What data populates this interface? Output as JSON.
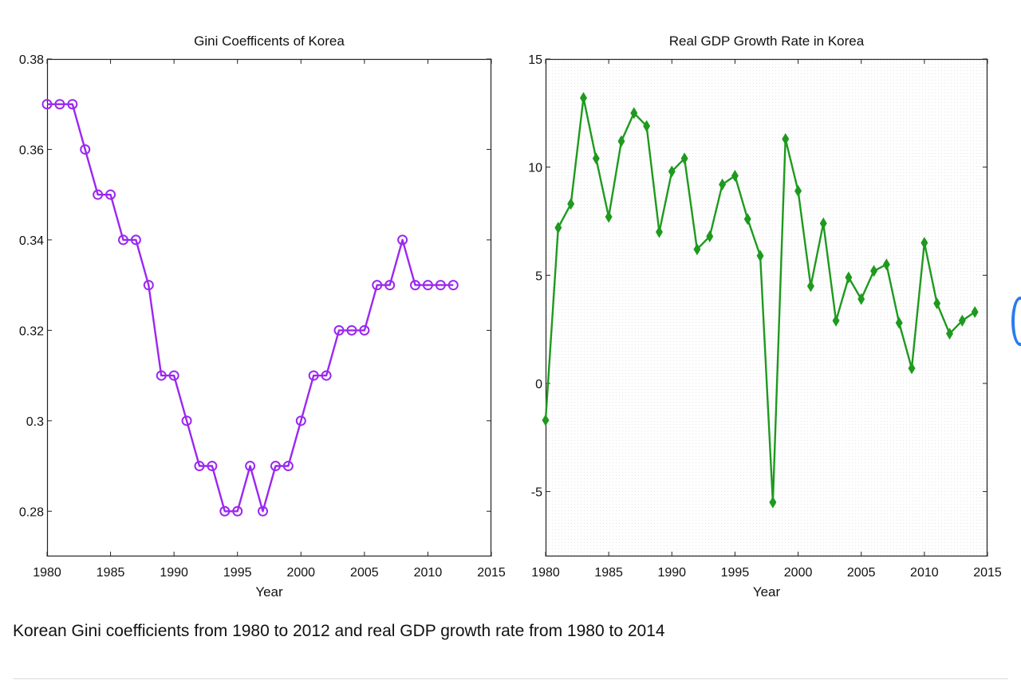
{
  "chart_data": [
    {
      "type": "line",
      "title": "Gini Coefficents of Korea",
      "xlabel": "Year",
      "ylabel": "",
      "xlim": [
        1980,
        2015
      ],
      "ylim": [
        0.27,
        0.38
      ],
      "xticks": [
        1980,
        1985,
        1990,
        1995,
        2000,
        2005,
        2010,
        2015
      ],
      "xtick_labels": [
        "1980",
        "1985",
        "1990",
        "1995",
        "2000",
        "2005",
        "2010",
        "2015"
      ],
      "yticks": [
        0.28,
        0.3,
        0.32,
        0.34,
        0.36,
        0.38
      ],
      "ytick_labels": [
        "0.28",
        "0.3",
        "0.32",
        "0.34",
        "0.36",
        "0.38"
      ],
      "marker": "circle",
      "background": "plain",
      "series": [
        {
          "name": "Gini coefficient",
          "color": "#9b27f0",
          "x": [
            1980,
            1981,
            1982,
            1983,
            1984,
            1985,
            1986,
            1987,
            1988,
            1989,
            1990,
            1991,
            1992,
            1993,
            1994,
            1995,
            1996,
            1997,
            1998,
            1999,
            2000,
            2001,
            2002,
            2003,
            2004,
            2005,
            2006,
            2007,
            2008,
            2009,
            2010,
            2011,
            2012
          ],
          "values": [
            0.37,
            0.37,
            0.37,
            0.36,
            0.35,
            0.35,
            0.34,
            0.34,
            0.33,
            0.31,
            0.31,
            0.3,
            0.29,
            0.29,
            0.28,
            0.28,
            0.29,
            0.28,
            0.29,
            0.29,
            0.3,
            0.31,
            0.31,
            0.32,
            0.32,
            0.32,
            0.33,
            0.33,
            0.34,
            0.33,
            0.33,
            0.33,
            0.33
          ]
        }
      ]
    },
    {
      "type": "line",
      "title": "Real GDP Growth Rate in Korea",
      "xlabel": "Year",
      "ylabel": "",
      "xlim": [
        1980,
        2015
      ],
      "ylim": [
        -8,
        15
      ],
      "xticks": [
        1980,
        1985,
        1990,
        1995,
        2000,
        2005,
        2010,
        2015
      ],
      "xtick_labels": [
        "1980",
        "1985",
        "1990",
        "1995",
        "2000",
        "2005",
        "2010",
        "2015"
      ],
      "yticks": [
        -5,
        0,
        5,
        10,
        15
      ],
      "ytick_labels": [
        "-5",
        "0",
        "5",
        "10",
        "15"
      ],
      "marker": "diamond",
      "background": "dotted",
      "series": [
        {
          "name": "Real GDP growth rate",
          "color": "#1e9a1e",
          "x": [
            1980,
            1981,
            1982,
            1983,
            1984,
            1985,
            1986,
            1987,
            1988,
            1989,
            1990,
            1991,
            1992,
            1993,
            1994,
            1995,
            1996,
            1997,
            1998,
            1999,
            2000,
            2001,
            2002,
            2003,
            2004,
            2005,
            2006,
            2007,
            2008,
            2009,
            2010,
            2011,
            2012,
            2013,
            2014
          ],
          "values": [
            -1.7,
            7.2,
            8.3,
            13.2,
            10.4,
            7.7,
            11.2,
            12.5,
            11.9,
            7.0,
            9.8,
            10.4,
            6.2,
            6.8,
            9.2,
            9.6,
            7.6,
            5.9,
            -5.5,
            11.3,
            8.9,
            4.5,
            7.4,
            2.9,
            4.9,
            3.9,
            5.2,
            5.5,
            2.8,
            0.7,
            6.5,
            3.7,
            2.3,
            2.9,
            3.3
          ]
        }
      ]
    }
  ],
  "caption": "Korean Gini coefficients from 1980 to 2012 and real GDP growth rate from 1980 to 2014"
}
